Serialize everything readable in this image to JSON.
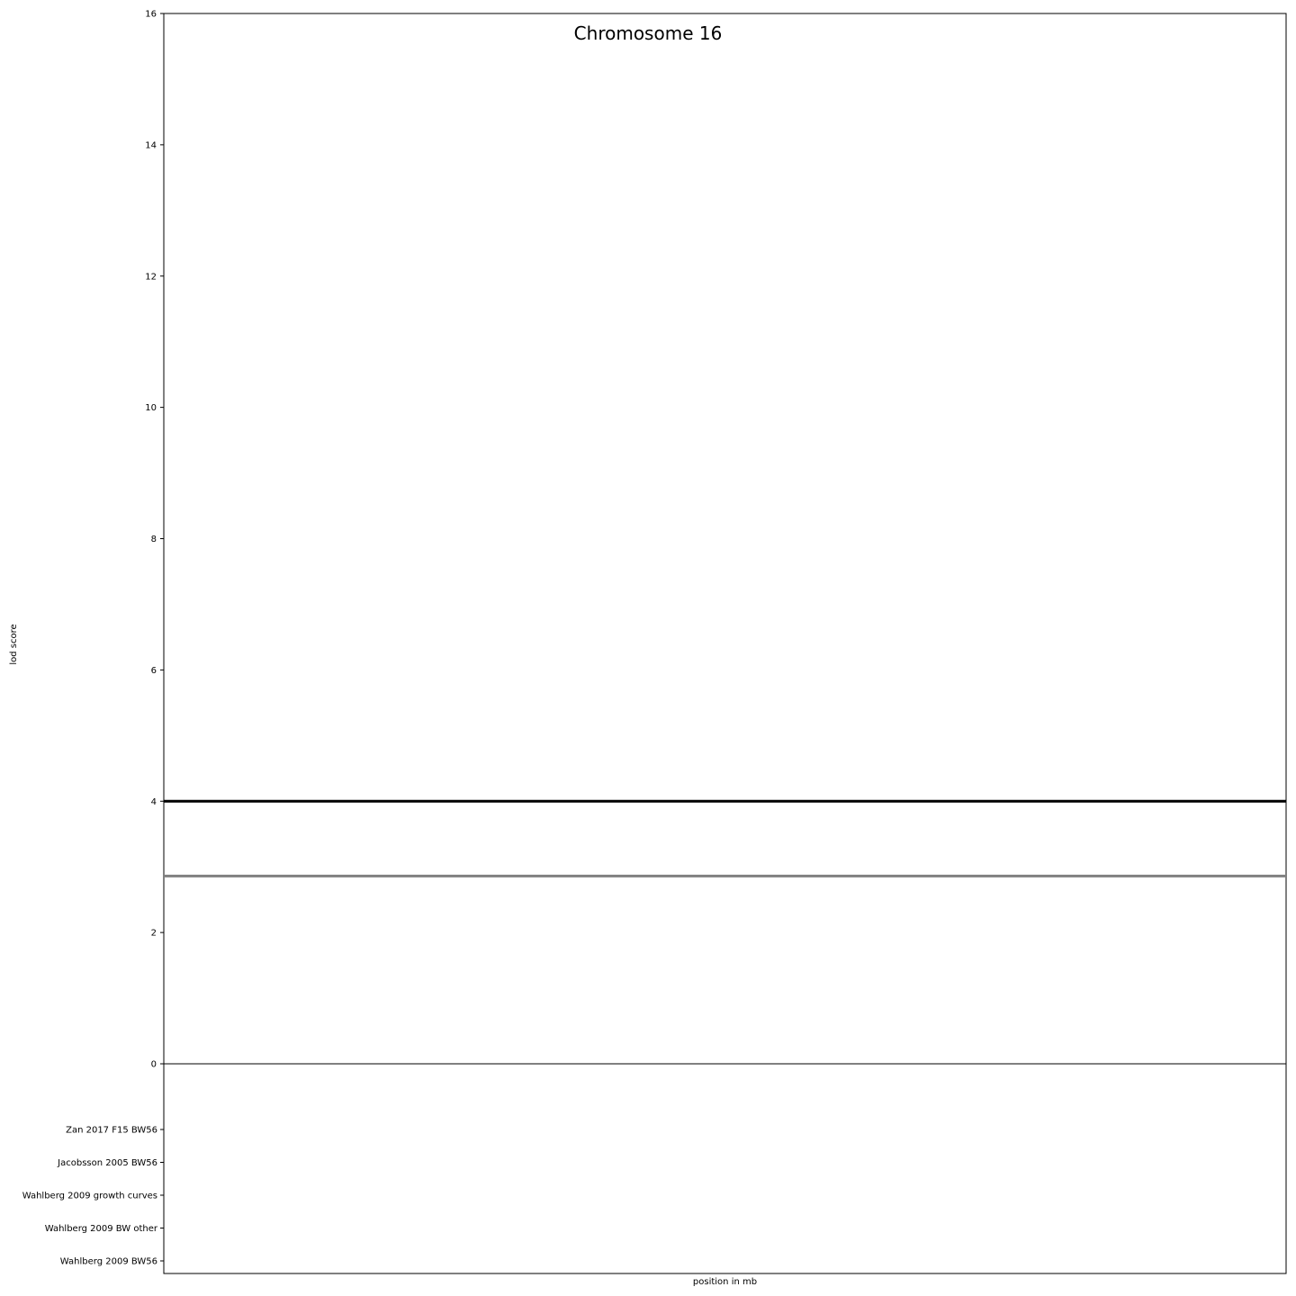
{
  "chart_data": {
    "type": "line",
    "title": "Chromosome 16",
    "xlabel": "position in mb",
    "ylabel": "lod score",
    "ylim": [
      0,
      16
    ],
    "y_ticks": [
      0,
      2,
      4,
      6,
      8,
      10,
      12,
      14,
      16
    ],
    "grid": false,
    "threshold_lines": [
      {
        "value": 4.0,
        "color": "#000000"
      },
      {
        "value": 2.86,
        "color": "#808080"
      }
    ],
    "baseline": 0,
    "study_tracks": [
      "Zan 2017 F15 BW56",
      "Jacobsson 2005 BW56",
      "Wahlberg 2009 growth curves",
      "Wahlberg 2009 BW other",
      "Wahlberg 2009 BW56"
    ]
  }
}
